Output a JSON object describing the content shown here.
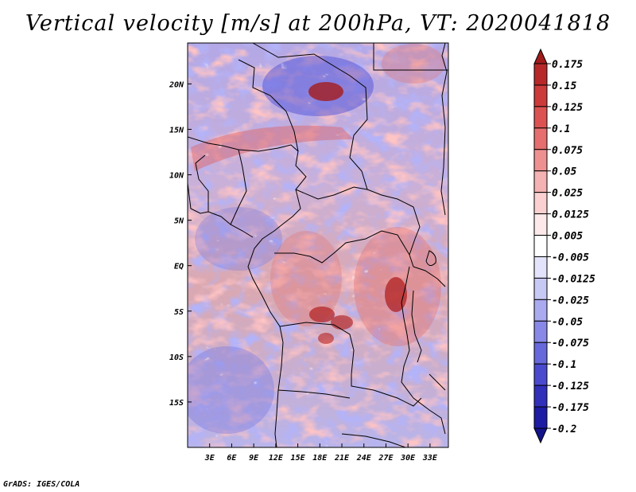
{
  "title": "Vertical velocity [m/s] at 200hPa, VT: 2020041818",
  "credit": "GrADS: IGES/COLA",
  "map": {
    "lon_range": [
      0,
      35.5
    ],
    "lat_range": [
      -20,
      24.5
    ],
    "lon_ticks": [
      {
        "value": 3,
        "label": "3E"
      },
      {
        "value": 6,
        "label": "6E"
      },
      {
        "value": 9,
        "label": "9E"
      },
      {
        "value": 12,
        "label": "12E"
      },
      {
        "value": 15,
        "label": "15E"
      },
      {
        "value": 18,
        "label": "18E"
      },
      {
        "value": 21,
        "label": "21E"
      },
      {
        "value": 24,
        "label": "24E"
      },
      {
        "value": 27,
        "label": "27E"
      },
      {
        "value": 30,
        "label": "30E"
      },
      {
        "value": 33,
        "label": "33E"
      }
    ],
    "lat_ticks": [
      {
        "value": 20,
        "label": "20N"
      },
      {
        "value": 15,
        "label": "15N"
      },
      {
        "value": 10,
        "label": "10N"
      },
      {
        "value": 5,
        "label": "5N"
      },
      {
        "value": 0,
        "label": "EQ"
      },
      {
        "value": -5,
        "label": "5S"
      },
      {
        "value": -10,
        "label": "10S"
      },
      {
        "value": -15,
        "label": "15S"
      }
    ]
  },
  "colorbar": {
    "labels": [
      "0.175",
      "0.15",
      "0.125",
      "0.1",
      "0.075",
      "0.05",
      "0.025",
      "0.0125",
      "0.005",
      "-0.005",
      "-0.0125",
      "-0.025",
      "-0.05",
      "-0.075",
      "-0.1",
      "-0.125",
      "-0.175",
      "-0.2"
    ],
    "colors": [
      "#a01c1c",
      "#b82828",
      "#cc3a3a",
      "#dc5252",
      "#e66e6e",
      "#ef9090",
      "#f5b2b2",
      "#fad0d0",
      "#fde9e9",
      "#ffffff",
      "#e3e3fb",
      "#c8c8f5",
      "#aaaaf0",
      "#8888e8",
      "#6868dd",
      "#4a4acf",
      "#3030bb",
      "#1c1ca4",
      "#13138a"
    ]
  }
}
